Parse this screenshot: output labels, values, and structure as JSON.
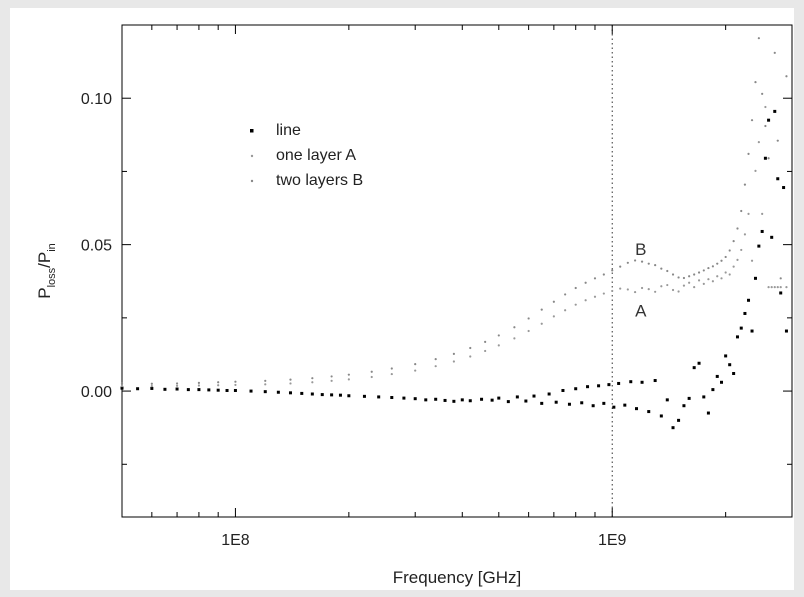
{
  "chart_data": {
    "type": "scatter",
    "title": "",
    "xlabel": "Frequency [GHz]",
    "ylabel_main": "P",
    "ylabel_sub1": "loss",
    "ylabel_sep": "/P",
    "ylabel_sub2": "in",
    "xscale": "log",
    "xlim": [
      50000000,
      3000000000
    ],
    "ylim": [
      -0.043,
      0.125
    ],
    "x_ticks": [
      {
        "value": 100000000,
        "label": "1E8"
      },
      {
        "value": 1000000000,
        "label": "1E9"
      }
    ],
    "y_ticks": [
      {
        "value": 0.0,
        "label": "0.00"
      },
      {
        "value": 0.05,
        "label": "0.05"
      },
      {
        "value": 0.1,
        "label": "0.10"
      }
    ],
    "y_minor_ticks": [
      -0.025,
      0.025,
      0.075
    ],
    "grid": false,
    "reference_line": {
      "x": 1000000000,
      "style": "dotted"
    },
    "legend": {
      "placement": "upper-left",
      "entries": [
        {
          "label": "line",
          "color": "#000000",
          "marker": "square"
        },
        {
          "label": "one layer A",
          "color": "#999999",
          "marker": "dot"
        },
        {
          "label": "two layers B",
          "color": "#888888",
          "marker": "dot"
        }
      ]
    },
    "annotations": [
      {
        "text": "B",
        "x": 1150000000,
        "y": 0.0465
      },
      {
        "text": "A",
        "x": 1150000000,
        "y": 0.0255
      }
    ],
    "series": [
      {
        "name": "line",
        "color": "#000000",
        "points": [
          [
            50000000,
            0.001
          ],
          [
            55000000,
            0.0008
          ],
          [
            60000000,
            0.0009
          ],
          [
            65000000,
            0.0006
          ],
          [
            70000000,
            0.0007
          ],
          [
            75000000,
            0.0005
          ],
          [
            80000000,
            0.0005
          ],
          [
            85000000,
            0.0004
          ],
          [
            90000000,
            0.0003
          ],
          [
            95000000,
            0.0002
          ],
          [
            100000000,
            0.0002
          ],
          [
            110000000,
            0.0
          ],
          [
            120000000,
            -0.0002
          ],
          [
            130000000,
            -0.0004
          ],
          [
            140000000,
            -0.0006
          ],
          [
            150000000,
            -0.0008
          ],
          [
            160000000,
            -0.001
          ],
          [
            170000000,
            -0.0012
          ],
          [
            180000000,
            -0.0013
          ],
          [
            190000000,
            -0.0014
          ],
          [
            200000000,
            -0.0016
          ],
          [
            220000000,
            -0.0018
          ],
          [
            240000000,
            -0.002
          ],
          [
            260000000,
            -0.0022
          ],
          [
            280000000,
            -0.0024
          ],
          [
            300000000,
            -0.0026
          ],
          [
            320000000,
            -0.003
          ],
          [
            340000000,
            -0.0028
          ],
          [
            360000000,
            -0.0032
          ],
          [
            380000000,
            -0.0035
          ],
          [
            400000000,
            -0.003
          ],
          [
            420000000,
            -0.0033
          ],
          [
            450000000,
            -0.0028
          ],
          [
            480000000,
            -0.0031
          ],
          [
            500000000,
            -0.0024
          ],
          [
            530000000,
            -0.0036
          ],
          [
            560000000,
            -0.002
          ],
          [
            590000000,
            -0.0034
          ],
          [
            620000000,
            -0.0017
          ],
          [
            650000000,
            -0.0042
          ],
          [
            680000000,
            -0.001
          ],
          [
            710000000,
            -0.0038
          ],
          [
            740000000,
            0.0002
          ],
          [
            770000000,
            -0.0045
          ],
          [
            800000000,
            0.0008
          ],
          [
            830000000,
            -0.004
          ],
          [
            860000000,
            0.0015
          ],
          [
            890000000,
            -0.005
          ],
          [
            920000000,
            0.0018
          ],
          [
            950000000,
            -0.0042
          ],
          [
            980000000,
            0.0022
          ],
          [
            1010000000,
            -0.0055
          ],
          [
            1040000000,
            0.0026
          ],
          [
            1080000000,
            -0.0048
          ],
          [
            1120000000,
            0.0032
          ],
          [
            1160000000,
            -0.006
          ],
          [
            1200000000,
            0.003
          ],
          [
            1250000000,
            -0.007
          ],
          [
            1300000000,
            0.0036
          ],
          [
            1350000000,
            -0.0085
          ],
          [
            1400000000,
            -0.003
          ],
          [
            1450000000,
            -0.0125
          ],
          [
            1500000000,
            -0.01
          ],
          [
            1550000000,
            -0.005
          ],
          [
            1600000000,
            -0.0025
          ],
          [
            1650000000,
            0.008
          ],
          [
            1700000000,
            0.0095
          ],
          [
            1750000000,
            -0.002
          ],
          [
            1800000000,
            -0.0075
          ],
          [
            1850000000,
            0.0005
          ],
          [
            1900000000,
            0.005
          ],
          [
            1950000000,
            0.003
          ],
          [
            2000000000,
            0.012
          ],
          [
            2050000000,
            0.009
          ],
          [
            2100000000,
            0.006
          ],
          [
            2150000000,
            0.0185
          ],
          [
            2200000000,
            0.0215
          ],
          [
            2250000000,
            0.0265
          ],
          [
            2300000000,
            0.031
          ],
          [
            2350000000,
            0.0205
          ],
          [
            2400000000,
            0.0385
          ],
          [
            2450000000,
            0.0495
          ],
          [
            2500000000,
            0.0545
          ],
          [
            2550000000,
            0.0795
          ],
          [
            2600000000,
            0.0925
          ],
          [
            2650000000,
            0.0525
          ],
          [
            2700000000,
            0.0955
          ],
          [
            2750000000,
            0.0725
          ],
          [
            2800000000,
            0.0335
          ],
          [
            2850000000,
            0.0695
          ],
          [
            2900000000,
            0.0205
          ]
        ]
      },
      {
        "name": "one layer A",
        "color": "#999999",
        "points": [
          [
            50000000,
            0.0017
          ],
          [
            60000000,
            0.0017
          ],
          [
            70000000,
            0.0018
          ],
          [
            80000000,
            0.0019
          ],
          [
            90000000,
            0.002
          ],
          [
            100000000,
            0.0021
          ],
          [
            120000000,
            0.0023
          ],
          [
            140000000,
            0.0026
          ],
          [
            160000000,
            0.003
          ],
          [
            180000000,
            0.0035
          ],
          [
            200000000,
            0.004
          ],
          [
            230000000,
            0.0048
          ],
          [
            260000000,
            0.0058
          ],
          [
            300000000,
            0.007
          ],
          [
            340000000,
            0.0085
          ],
          [
            380000000,
            0.0101
          ],
          [
            420000000,
            0.0118
          ],
          [
            460000000,
            0.0137
          ],
          [
            500000000,
            0.0156
          ],
          [
            550000000,
            0.018
          ],
          [
            600000000,
            0.0205
          ],
          [
            650000000,
            0.023
          ],
          [
            700000000,
            0.0255
          ],
          [
            750000000,
            0.0276
          ],
          [
            800000000,
            0.0295
          ],
          [
            850000000,
            0.031
          ],
          [
            900000000,
            0.0322
          ],
          [
            950000000,
            0.0333
          ],
          [
            1000000000,
            0.0342
          ],
          [
            1050000000,
            0.035
          ],
          [
            1100000000,
            0.0347
          ],
          [
            1150000000,
            0.0338
          ],
          [
            1200000000,
            0.0352
          ],
          [
            1250000000,
            0.0348
          ],
          [
            1300000000,
            0.0339
          ],
          [
            1350000000,
            0.0358
          ],
          [
            1400000000,
            0.0362
          ],
          [
            1450000000,
            0.0345
          ],
          [
            1500000000,
            0.034
          ],
          [
            1550000000,
            0.036
          ],
          [
            1600000000,
            0.037
          ],
          [
            1650000000,
            0.0355
          ],
          [
            1700000000,
            0.0378
          ],
          [
            1750000000,
            0.0366
          ],
          [
            1800000000,
            0.0382
          ],
          [
            1850000000,
            0.0375
          ],
          [
            1900000000,
            0.0392
          ],
          [
            1950000000,
            0.0385
          ],
          [
            2000000000,
            0.0405
          ],
          [
            2050000000,
            0.0398
          ],
          [
            2100000000,
            0.0425
          ],
          [
            2150000000,
            0.0448
          ],
          [
            2200000000,
            0.0482
          ],
          [
            2250000000,
            0.0535
          ],
          [
            2300000000,
            0.0605
          ],
          [
            2350000000,
            0.0445
          ],
          [
            2400000000,
            0.0752
          ],
          [
            2450000000,
            0.085
          ],
          [
            2500000000,
            0.0605
          ],
          [
            2550000000,
            0.097
          ],
          [
            2600000000,
            0.0355
          ],
          [
            2650000000,
            0.0355
          ],
          [
            2700000000,
            0.0355
          ],
          [
            2750000000,
            0.0355
          ],
          [
            2800000000,
            0.0355
          ],
          [
            2900000000,
            0.0355
          ]
        ]
      },
      {
        "name": "two layers B",
        "color": "#888888",
        "points": [
          [
            50000000,
            0.0025
          ],
          [
            60000000,
            0.0025
          ],
          [
            70000000,
            0.0026
          ],
          [
            80000000,
            0.0028
          ],
          [
            90000000,
            0.003
          ],
          [
            100000000,
            0.0032
          ],
          [
            120000000,
            0.0035
          ],
          [
            140000000,
            0.0039
          ],
          [
            160000000,
            0.0044
          ],
          [
            180000000,
            0.005
          ],
          [
            200000000,
            0.0056
          ],
          [
            230000000,
            0.0066
          ],
          [
            260000000,
            0.0077
          ],
          [
            300000000,
            0.0092
          ],
          [
            340000000,
            0.0109
          ],
          [
            380000000,
            0.0127
          ],
          [
            420000000,
            0.0147
          ],
          [
            460000000,
            0.0168
          ],
          [
            500000000,
            0.019
          ],
          [
            550000000,
            0.0218
          ],
          [
            600000000,
            0.0248
          ],
          [
            650000000,
            0.0278
          ],
          [
            700000000,
            0.0305
          ],
          [
            750000000,
            0.033
          ],
          [
            800000000,
            0.0352
          ],
          [
            850000000,
            0.037
          ],
          [
            900000000,
            0.0385
          ],
          [
            950000000,
            0.0398
          ],
          [
            1000000000,
            0.0412
          ],
          [
            1050000000,
            0.0425
          ],
          [
            1100000000,
            0.0438
          ],
          [
            1150000000,
            0.0446
          ],
          [
            1200000000,
            0.0442
          ],
          [
            1250000000,
            0.0435
          ],
          [
            1300000000,
            0.043
          ],
          [
            1350000000,
            0.0418
          ],
          [
            1400000000,
            0.041
          ],
          [
            1450000000,
            0.0398
          ],
          [
            1500000000,
            0.0388
          ],
          [
            1550000000,
            0.0386
          ],
          [
            1600000000,
            0.0392
          ],
          [
            1650000000,
            0.0398
          ],
          [
            1700000000,
            0.0405
          ],
          [
            1750000000,
            0.0412
          ],
          [
            1800000000,
            0.042
          ],
          [
            1850000000,
            0.0426
          ],
          [
            1900000000,
            0.0435
          ],
          [
            1950000000,
            0.0445
          ],
          [
            2000000000,
            0.0458
          ],
          [
            2050000000,
            0.048
          ],
          [
            2100000000,
            0.0512
          ],
          [
            2150000000,
            0.0555
          ],
          [
            2200000000,
            0.0615
          ],
          [
            2250000000,
            0.0705
          ],
          [
            2300000000,
            0.081
          ],
          [
            2350000000,
            0.0925
          ],
          [
            2400000000,
            0.1055
          ],
          [
            2450000000,
            0.1205
          ],
          [
            2500000000,
            0.1015
          ],
          [
            2550000000,
            0.0905
          ],
          [
            2600000000,
            0.0795
          ],
          [
            2700000000,
            0.1155
          ],
          [
            2750000000,
            0.0855
          ],
          [
            2800000000,
            0.0385
          ],
          [
            2900000000,
            0.1075
          ]
        ]
      }
    ]
  }
}
